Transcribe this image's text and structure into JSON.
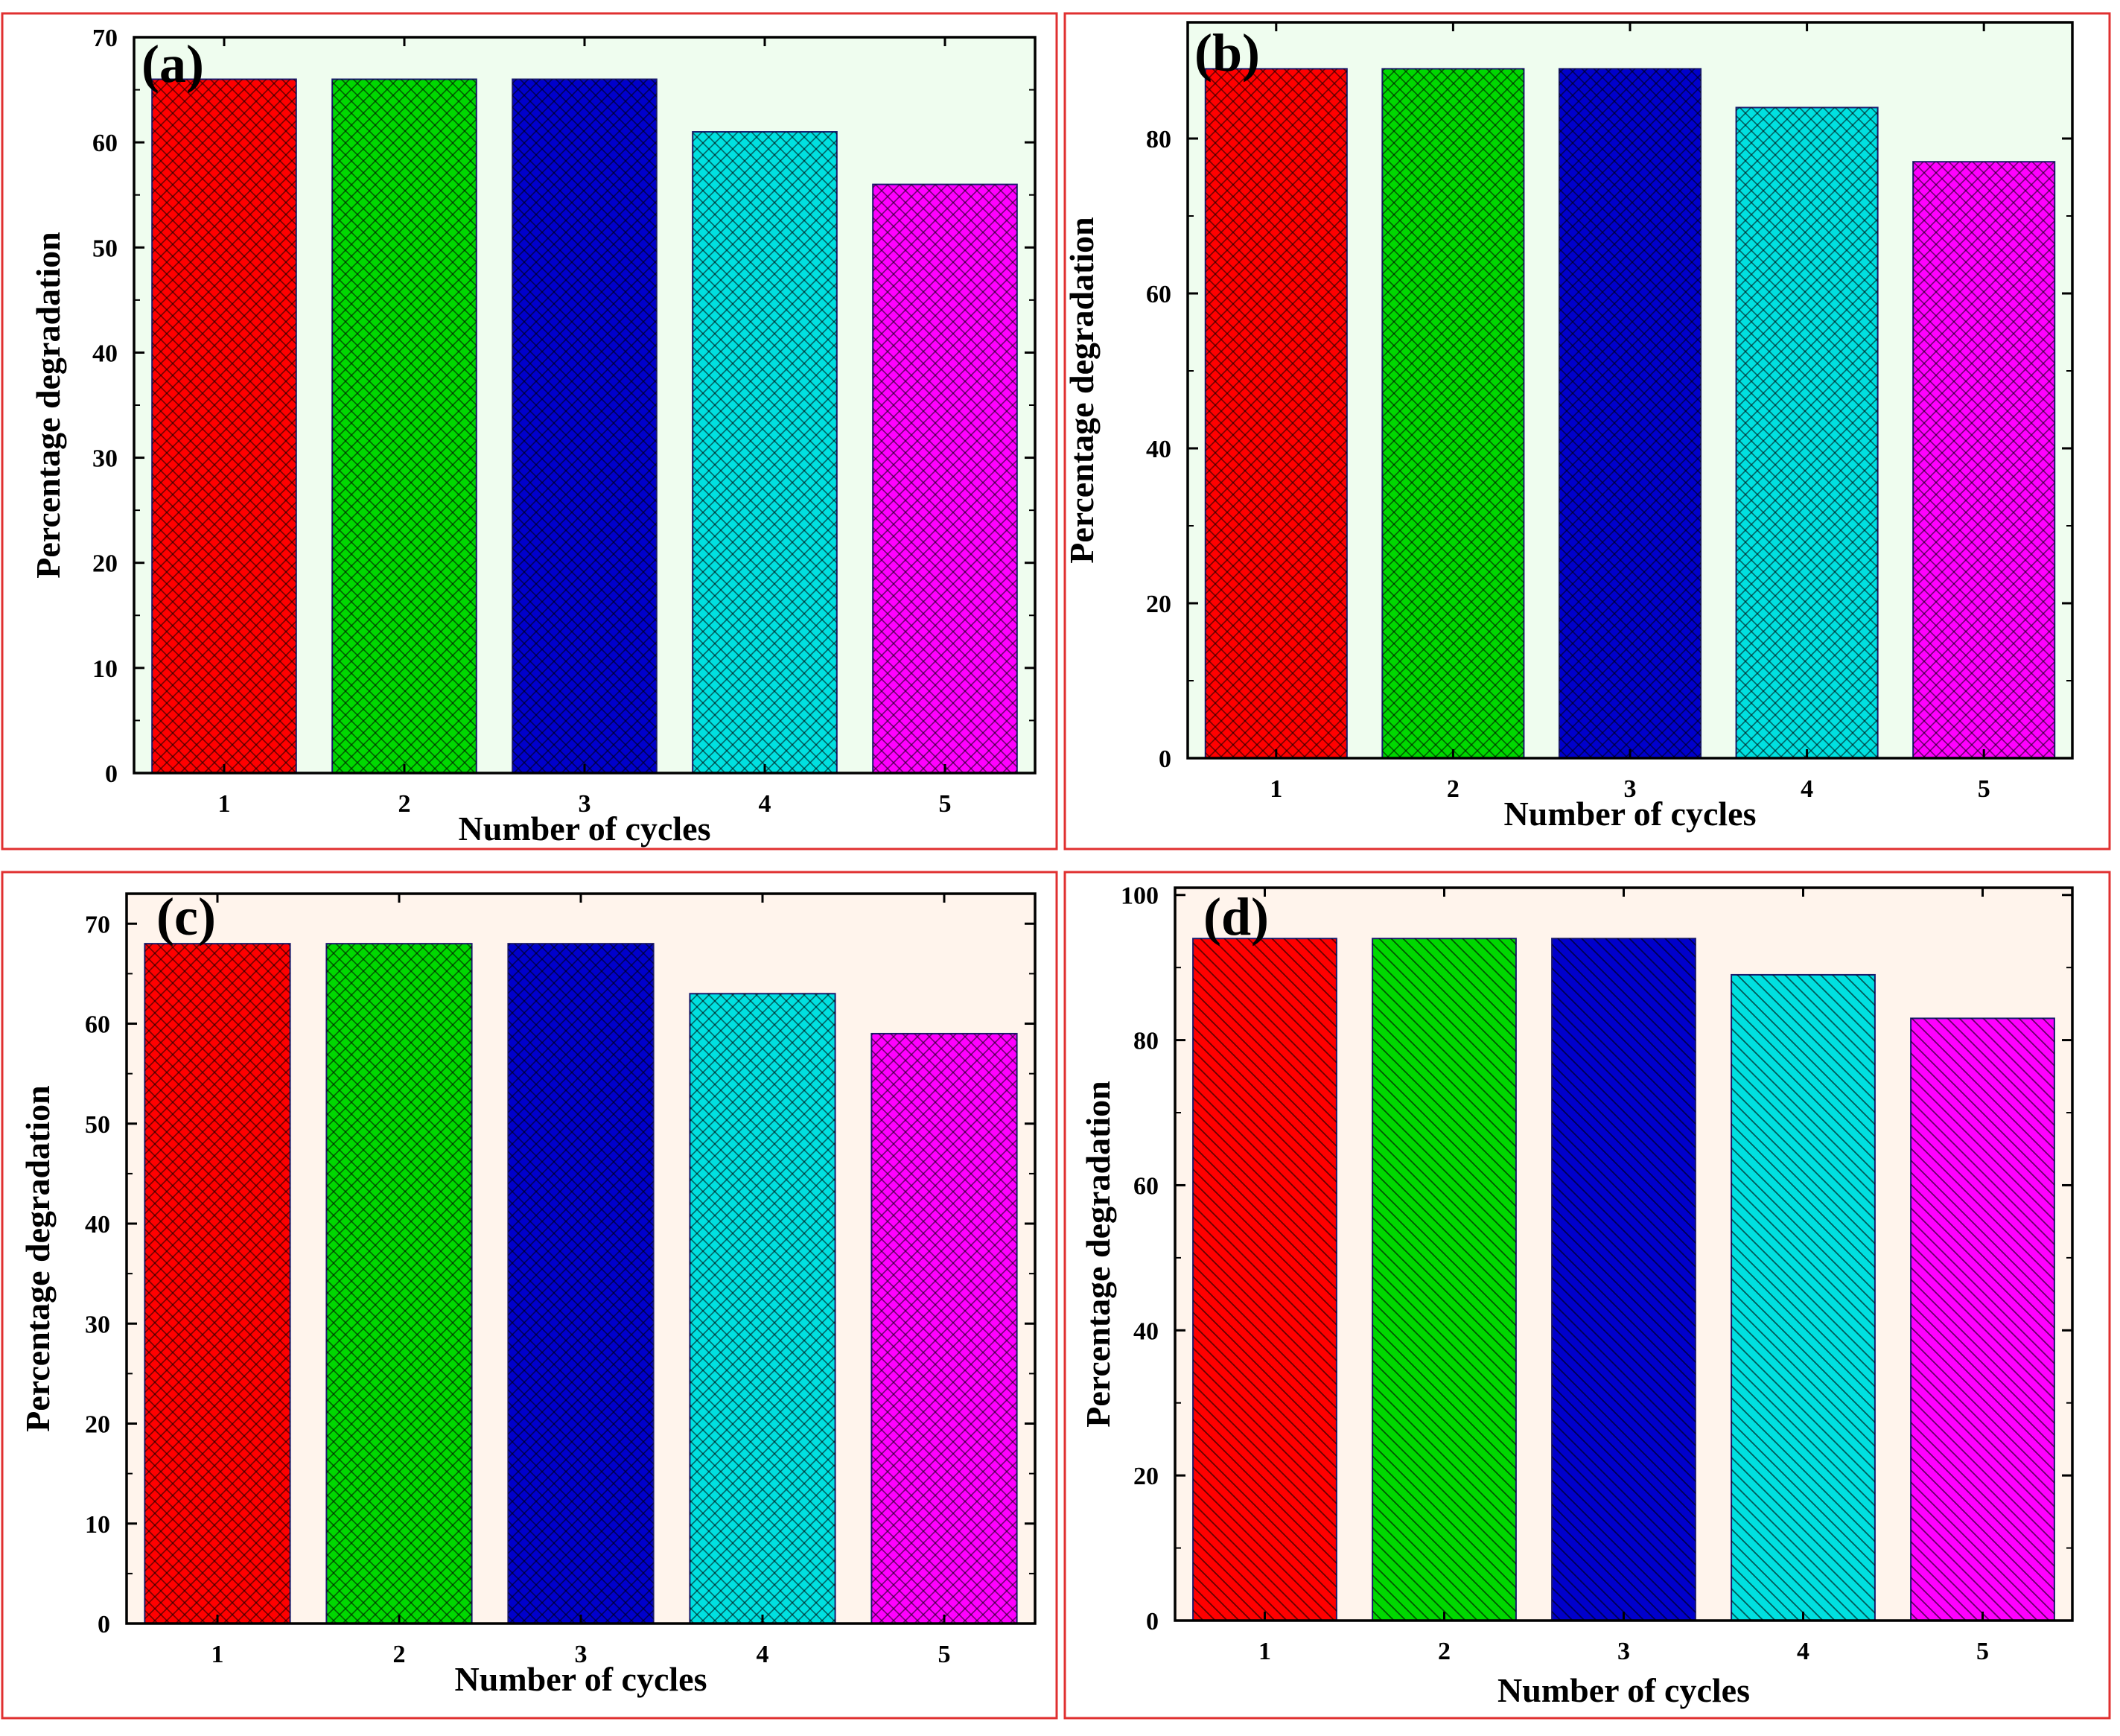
{
  "chart_data": [
    {
      "type": "bar",
      "panel_label": "(a)",
      "categories": [
        "1",
        "2",
        "3",
        "4",
        "5"
      ],
      "values": [
        66,
        66,
        66,
        61,
        56
      ],
      "title": "",
      "xlabel": "Number of cycles",
      "ylabel": "Percentage degradation",
      "ylim": [
        0,
        70
      ],
      "yticks": [
        0,
        10,
        20,
        30,
        40,
        50,
        60,
        70
      ],
      "background": "#effdef",
      "bar_colors": [
        "#ff0000",
        "#00d800",
        "#0000cc",
        "#00e0e0",
        "#ff00ff"
      ],
      "grid": false
    },
    {
      "type": "bar",
      "panel_label": "(b)",
      "categories": [
        "1",
        "2",
        "3",
        "4",
        "5"
      ],
      "values": [
        89,
        89,
        89,
        84,
        77
      ],
      "title": "",
      "xlabel": "Number of cycles",
      "ylabel": "Percentage degradation",
      "ylim": [
        0,
        95
      ],
      "yticks": [
        0,
        20,
        40,
        60,
        80
      ],
      "background": "#effdef",
      "bar_colors": [
        "#ff0000",
        "#00d800",
        "#0000cc",
        "#00e0e0",
        "#ff00ff"
      ],
      "grid": false
    },
    {
      "type": "bar",
      "panel_label": "(c)",
      "categories": [
        "1",
        "2",
        "3",
        "4",
        "5"
      ],
      "values": [
        68,
        68,
        68,
        63,
        59
      ],
      "title": "",
      "xlabel": "Number of cycles",
      "ylabel": "Percentage degradation",
      "ylim": [
        0,
        73
      ],
      "yticks": [
        0,
        10,
        20,
        30,
        40,
        50,
        60,
        70
      ],
      "background": "#fff4ec",
      "bar_colors": [
        "#ff0000",
        "#00d800",
        "#0000cc",
        "#00e0e0",
        "#ff00ff"
      ],
      "grid": false
    },
    {
      "type": "bar",
      "panel_label": "(d)",
      "categories": [
        "1",
        "2",
        "3",
        "4",
        "5"
      ],
      "values": [
        94,
        94,
        94,
        89,
        83
      ],
      "title": "",
      "xlabel": "Number of cycles",
      "ylabel": "Percentage degradation",
      "ylim": [
        0,
        101
      ],
      "yticks": [
        0,
        20,
        40,
        60,
        80,
        100
      ],
      "background": "#fff4ec",
      "bar_colors": [
        "#ff0000",
        "#00d800",
        "#0000cc",
        "#00e0e0",
        "#ff00ff"
      ],
      "grid": false
    }
  ]
}
